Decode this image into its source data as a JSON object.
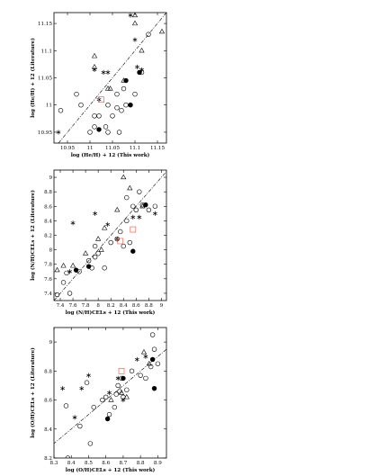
{
  "chart_data": [
    {
      "type": "scatter",
      "title": "",
      "xlabel": "log (He/H) + 12 (This work)",
      "ylabel": "log (He/H) + 12 (Literature)",
      "xlim": [
        10.92,
        11.17
      ],
      "ylim": [
        10.93,
        11.17
      ],
      "xticks": [
        "10.95",
        "11",
        "11.05",
        "11.1",
        "11.15"
      ],
      "yticks": [
        "10.95",
        "11",
        "11.05",
        "11.1",
        "11.15"
      ],
      "reference_line": "one-to-one, dash-dot",
      "series": [
        {
          "marker": "open-circle",
          "points": [
            [
              10.935,
              10.99
            ],
            [
              10.97,
              11.02
            ],
            [
              10.98,
              11.0
            ],
            [
              11.0,
              10.95
            ],
            [
              11.01,
              10.96
            ],
            [
              11.01,
              10.98
            ],
            [
              11.02,
              10.98
            ],
            [
              11.035,
              10.96
            ],
            [
              11.04,
              11.0
            ],
            [
              11.04,
              10.95
            ],
            [
              11.05,
              10.98
            ],
            [
              11.06,
              11.02
            ],
            [
              11.065,
              10.95
            ],
            [
              11.07,
              10.99
            ],
            [
              11.08,
              11.0
            ],
            [
              11.1,
              11.02
            ],
            [
              11.115,
              11.06
            ],
            [
              11.13,
              11.13
            ],
            [
              11.06,
              10.995
            ],
            [
              11.075,
              11.03
            ]
          ]
        },
        {
          "marker": "open-triangle",
          "points": [
            [
              11.01,
              11.09
            ],
            [
              11.01,
              11.07
            ],
            [
              11.04,
              11.03
            ],
            [
              11.045,
              11.03
            ],
            [
              11.075,
              11.045
            ],
            [
              11.1,
              11.15
            ],
            [
              11.115,
              11.1
            ],
            [
              11.1,
              11.165
            ],
            [
              11.16,
              11.135
            ]
          ]
        },
        {
          "marker": "asterisk",
          "points": [
            [
              10.93,
              10.95
            ],
            [
              11.01,
              11.065
            ],
            [
              11.02,
              11.01
            ],
            [
              11.03,
              11.06
            ],
            [
              11.04,
              11.06
            ],
            [
              11.09,
              11.165
            ],
            [
              11.1,
              11.12
            ],
            [
              11.105,
              11.07
            ],
            [
              11.115,
              11.065
            ]
          ]
        },
        {
          "marker": "filled-circle",
          "points": [
            [
              11.02,
              10.955
            ],
            [
              11.08,
              11.045
            ],
            [
              11.09,
              11.0
            ],
            [
              11.11,
              11.06
            ]
          ]
        },
        {
          "marker": "open-square",
          "color": "#e06a5a",
          "points": [
            [
              11.025,
              11.01
            ]
          ]
        }
      ]
    },
    {
      "type": "scatter",
      "title": "",
      "xlabel": "log (N/H)CELs + 12 (This work)",
      "ylabel": "log (N/H)CELs + 12 (Literature)",
      "xlim": [
        7.3,
        9.08
      ],
      "ylim": [
        7.3,
        9.1
      ],
      "xticks": [
        "7.4",
        "7.6",
        "7.8",
        "8",
        "8.2",
        "8.4",
        "8.6",
        "8.8",
        "9"
      ],
      "yticks": [
        "7.4",
        "7.6",
        "7.8",
        "8",
        "8.2",
        "8.4",
        "8.6",
        "8.8",
        "9"
      ],
      "reference_line": "one-to-one, dash-dot",
      "series": [
        {
          "marker": "open-circle",
          "points": [
            [
              7.35,
              7.38
            ],
            [
              7.45,
              7.55
            ],
            [
              7.5,
              7.68
            ],
            [
              7.55,
              7.4
            ],
            [
              7.7,
              7.7
            ],
            [
              7.85,
              7.85
            ],
            [
              7.9,
              7.75
            ],
            [
              7.95,
              7.9
            ],
            [
              8.0,
              7.95
            ],
            [
              8.2,
              8.1
            ],
            [
              8.3,
              8.15
            ],
            [
              8.35,
              8.25
            ],
            [
              8.45,
              8.4
            ],
            [
              8.5,
              8.1
            ],
            [
              8.55,
              8.6
            ],
            [
              8.6,
              8.55
            ],
            [
              8.65,
              8.8
            ],
            [
              8.7,
              8.62
            ],
            [
              8.8,
              8.55
            ],
            [
              8.9,
              8.6
            ],
            [
              8.1,
              7.75
            ],
            [
              8.4,
              8.05
            ],
            [
              7.95,
              8.05
            ],
            [
              8.45,
              8.72
            ]
          ]
        },
        {
          "marker": "open-triangle",
          "points": [
            [
              7.35,
              7.72
            ],
            [
              7.45,
              7.78
            ],
            [
              7.6,
              7.78
            ],
            [
              7.8,
              7.95
            ],
            [
              8.0,
              8.15
            ],
            [
              8.1,
              8.3
            ],
            [
              8.3,
              8.55
            ],
            [
              8.4,
              9.0
            ],
            [
              8.5,
              8.85
            ],
            [
              8.7,
              8.6
            ],
            [
              8.05,
              8.0
            ]
          ]
        },
        {
          "marker": "asterisk",
          "points": [
            [
              7.6,
              8.37
            ],
            [
              7.95,
              8.5
            ],
            [
              8.15,
              8.35
            ],
            [
              8.3,
              8.15
            ],
            [
              8.55,
              8.45
            ],
            [
              8.65,
              8.45
            ],
            [
              8.9,
              8.5
            ],
            [
              7.55,
              7.7
            ]
          ]
        },
        {
          "marker": "filled-circle",
          "points": [
            [
              7.65,
              7.72
            ],
            [
              7.85,
              7.77
            ],
            [
              8.55,
              7.98
            ],
            [
              8.75,
              8.62
            ]
          ]
        },
        {
          "marker": "open-square",
          "color": "#e06a5a",
          "points": [
            [
              8.35,
              8.12
            ],
            [
              8.55,
              8.28
            ]
          ]
        }
      ]
    },
    {
      "type": "scatter",
      "title": "",
      "xlabel": "log (O/H)CELs + 12 (This work)",
      "ylabel": "log (O/H)CELs + 12 (Literature)",
      "xlim": [
        8.3,
        8.95
      ],
      "ylim": [
        8.2,
        9.1
      ],
      "xticks": [
        "8.3",
        "8.4",
        "8.5",
        "8.6",
        "8.7",
        "8.8",
        "8.9"
      ],
      "yticks": [
        "8.2",
        "8.4",
        "8.6",
        "8.8",
        "9"
      ],
      "reference_line": "one-to-one, dash-dot",
      "series": [
        {
          "marker": "open-circle",
          "points": [
            [
              8.37,
              8.56
            ],
            [
              8.38,
              8.2
            ],
            [
              8.45,
              8.42
            ],
            [
              8.49,
              8.72
            ],
            [
              8.51,
              8.3
            ],
            [
              8.53,
              8.55
            ],
            [
              8.58,
              8.6
            ],
            [
              8.6,
              8.62
            ],
            [
              8.62,
              8.5
            ],
            [
              8.65,
              8.55
            ],
            [
              8.66,
              8.64
            ],
            [
              8.68,
              8.66
            ],
            [
              8.7,
              8.62
            ],
            [
              8.72,
              8.67
            ],
            [
              8.75,
              8.8
            ],
            [
              8.8,
              8.77
            ],
            [
              8.83,
              8.75
            ],
            [
              8.86,
              8.83
            ],
            [
              8.87,
              9.05
            ],
            [
              8.9,
              8.85
            ],
            [
              8.88,
              8.95
            ],
            [
              8.69,
              8.75
            ],
            [
              8.67,
              8.7
            ]
          ]
        },
        {
          "marker": "open-triangle",
          "points": [
            [
              8.63,
              8.6
            ],
            [
              8.69,
              8.65
            ],
            [
              8.72,
              8.62
            ],
            [
              8.82,
              8.93
            ],
            [
              8.85,
              8.85
            ]
          ]
        },
        {
          "marker": "asterisk",
          "points": [
            [
              8.35,
              8.68
            ],
            [
              8.42,
              8.48
            ],
            [
              8.46,
              8.68
            ],
            [
              8.5,
              8.77
            ],
            [
              8.62,
              8.65
            ],
            [
              8.67,
              8.75
            ],
            [
              8.7,
              8.6
            ],
            [
              8.78,
              8.88
            ],
            [
              8.83,
              8.9
            ]
          ]
        },
        {
          "marker": "filled-circle",
          "points": [
            [
              8.61,
              8.47
            ],
            [
              8.7,
              8.75
            ],
            [
              8.87,
              8.88
            ],
            [
              8.88,
              8.68
            ]
          ]
        },
        {
          "marker": "open-square",
          "color": "#e06a5a",
          "points": [
            [
              8.69,
              8.8
            ]
          ]
        }
      ]
    }
  ]
}
